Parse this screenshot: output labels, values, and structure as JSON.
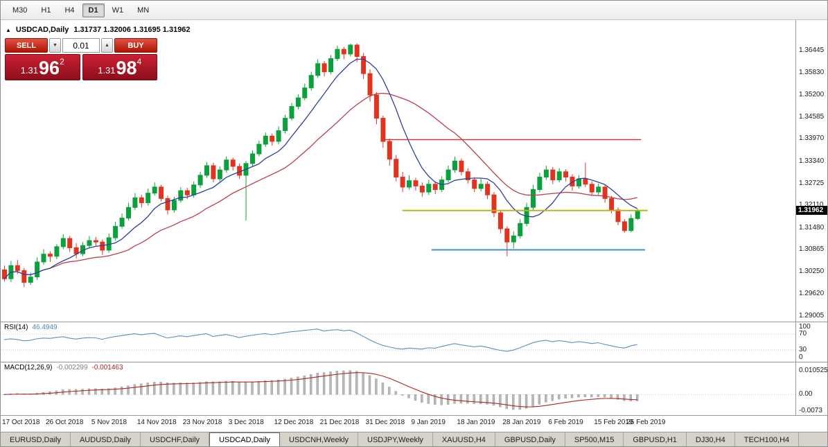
{
  "toolbar": {
    "timeframes": [
      {
        "label": "M30",
        "active": false
      },
      {
        "label": "H1",
        "active": false
      },
      {
        "label": "H4",
        "active": false
      },
      {
        "label": "D1",
        "active": true
      },
      {
        "label": "W1",
        "active": false
      },
      {
        "label": "MN",
        "active": false
      }
    ]
  },
  "icons": {
    "chart_arrow": "▲",
    "spin_up": "▲",
    "spin_down": "▼"
  },
  "chart": {
    "title": "USDCAD,Daily",
    "ohlc": "1.31737 1.32006 1.31695 1.31962"
  },
  "trade_panel": {
    "sell_label": "SELL",
    "buy_label": "BUY",
    "volume": "0.01",
    "sell": {
      "prefix": "1.31",
      "big": "96",
      "sup": "2"
    },
    "buy": {
      "prefix": "1.31",
      "big": "98",
      "sup": "4"
    }
  },
  "price_axis": {
    "labels": [
      "1.36445",
      "1.35830",
      "1.35200",
      "1.34585",
      "1.33970",
      "1.33340",
      "1.32725",
      "1.32110",
      "1.31480",
      "1.30865",
      "1.30250",
      "1.29620",
      "1.29005"
    ],
    "current": "1.31962"
  },
  "rsi": {
    "name": "RSI(14)",
    "value": "46.4949",
    "axis": [
      "100",
      "70",
      "30",
      "0"
    ],
    "line_color": "#5b8fbe"
  },
  "macd": {
    "name": "MACD(12,26,9)",
    "value1": "-0.002299",
    "value2": "-0.001463",
    "axis": [
      "0.010525",
      "0.00",
      "-0.0073"
    ],
    "histogram_color": "#b8b8b8",
    "signal_color": "#b22222"
  },
  "tabs": [
    {
      "label": "EURUSD,Daily",
      "active": false
    },
    {
      "label": "AUDUSD,Daily",
      "active": false
    },
    {
      "label": "USDCHF,Daily",
      "active": false
    },
    {
      "label": "USDCAD,Daily",
      "active": true
    },
    {
      "label": "USDCNH,Weekly",
      "active": false
    },
    {
      "label": "USDJPY,Weekly",
      "active": false
    },
    {
      "label": "XAUUSD,H4",
      "active": false
    },
    {
      "label": "GBPUSD,Daily",
      "active": false
    },
    {
      "label": "SP500,M15",
      "active": false
    },
    {
      "label": "GBPUSD,H1",
      "active": false
    },
    {
      "label": "DJ30,H4",
      "active": false
    },
    {
      "label": "TECH100,H4",
      "active": false
    }
  ],
  "chart_data": {
    "type": "candlestick",
    "symbol": "USDCAD",
    "timeframe": "Daily",
    "current_bar": {
      "open": 1.31737,
      "high": 1.32006,
      "low": 1.31695,
      "close": 1.31962
    },
    "y_range": [
      1.2885,
      1.373
    ],
    "colors": {
      "up": "#0aa13c",
      "down": "#e03420"
    },
    "ma_fast": {
      "period": 8,
      "color": "#2b3f9e"
    },
    "ma_slow": {
      "period": 20,
      "color": "#bf3b4b"
    },
    "hlines": [
      {
        "price": 1.3395,
        "from": 58,
        "to": 97.6,
        "color": "#cc3b33",
        "width": 1.4
      },
      {
        "price": 1.31962,
        "from": 61,
        "to": 98.6,
        "color": "#b8b81e",
        "width": 2
      },
      {
        "price": 1.3086,
        "from": 65.5,
        "to": 98.2,
        "color": "#3f8fd2",
        "width": 2
      }
    ],
    "date_labels": [
      {
        "i": 0,
        "text": "17 Oct 2018"
      },
      {
        "i": 7,
        "text": "26 Oct 2018"
      },
      {
        "i": 14,
        "text": "5 Nov 2018"
      },
      {
        "i": 21,
        "text": "14 Nov 2018"
      },
      {
        "i": 28,
        "text": "23 Nov 2018"
      },
      {
        "i": 35,
        "text": "3 Dec 2018"
      },
      {
        "i": 42,
        "text": "12 Dec 2018"
      },
      {
        "i": 49,
        "text": "21 Dec 2018"
      },
      {
        "i": 56,
        "text": "31 Dec 2018"
      },
      {
        "i": 63,
        "text": "9 Jan 2019"
      },
      {
        "i": 70,
        "text": "18 Jan 2019"
      },
      {
        "i": 77,
        "text": "28 Jan 2019"
      },
      {
        "i": 84,
        "text": "6 Feb 2019"
      },
      {
        "i": 91,
        "text": "15 Feb 2019"
      },
      {
        "i": 96,
        "text": "25 Feb 2019"
      }
    ],
    "candles": [
      [
        1.303,
        1.3042,
        1.2998,
        1.3005
      ],
      [
        1.3005,
        1.3055,
        1.2996,
        1.3042
      ],
      [
        1.3042,
        1.3058,
        1.3018,
        1.3028
      ],
      [
        1.3028,
        1.3035,
        1.2982,
        1.2995
      ],
      [
        1.2995,
        1.3022,
        1.2988,
        1.301
      ],
      [
        1.301,
        1.3065,
        1.3002,
        1.3052
      ],
      [
        1.3052,
        1.3088,
        1.3045,
        1.3074
      ],
      [
        1.3074,
        1.3082,
        1.3052,
        1.3068
      ],
      [
        1.3068,
        1.3102,
        1.306,
        1.3095
      ],
      [
        1.3095,
        1.313,
        1.3088,
        1.3118
      ],
      [
        1.3118,
        1.3125,
        1.308,
        1.3092
      ],
      [
        1.3092,
        1.3105,
        1.3062,
        1.3075
      ],
      [
        1.3075,
        1.3108,
        1.3068,
        1.3098
      ],
      [
        1.3098,
        1.3125,
        1.309,
        1.3112
      ],
      [
        1.3112,
        1.3122,
        1.3095,
        1.3108
      ],
      [
        1.3108,
        1.3115,
        1.3072,
        1.3085
      ],
      [
        1.3085,
        1.3132,
        1.3078,
        1.312
      ],
      [
        1.312,
        1.3165,
        1.3112,
        1.3152
      ],
      [
        1.3152,
        1.3188,
        1.3145,
        1.3175
      ],
      [
        1.3175,
        1.3218,
        1.3168,
        1.3205
      ],
      [
        1.3205,
        1.3245,
        1.3198,
        1.3232
      ],
      [
        1.3232,
        1.324,
        1.3205,
        1.3218
      ],
      [
        1.3218,
        1.3258,
        1.321,
        1.3245
      ],
      [
        1.3245,
        1.3275,
        1.3238,
        1.3262
      ],
      [
        1.3262,
        1.3268,
        1.3222,
        1.323
      ],
      [
        1.323,
        1.3238,
        1.3185,
        1.3198
      ],
      [
        1.3198,
        1.3235,
        1.319,
        1.3225
      ],
      [
        1.3225,
        1.3262,
        1.3218,
        1.3252
      ],
      [
        1.3252,
        1.326,
        1.3228,
        1.324
      ],
      [
        1.324,
        1.3278,
        1.3232,
        1.3268
      ],
      [
        1.3268,
        1.3305,
        1.326,
        1.3295
      ],
      [
        1.3295,
        1.3332,
        1.3288,
        1.3322
      ],
      [
        1.3322,
        1.333,
        1.3275,
        1.3285
      ],
      [
        1.3285,
        1.332,
        1.3278,
        1.331
      ],
      [
        1.331,
        1.3348,
        1.3302,
        1.3338
      ],
      [
        1.3338,
        1.3345,
        1.3308,
        1.332
      ],
      [
        1.332,
        1.3328,
        1.3285,
        1.3295
      ],
      [
        1.3295,
        1.3335,
        1.3168,
        1.3328
      ],
      [
        1.3328,
        1.3365,
        1.332,
        1.3355
      ],
      [
        1.3355,
        1.3392,
        1.3348,
        1.3382
      ],
      [
        1.3382,
        1.3415,
        1.3375,
        1.3405
      ],
      [
        1.3405,
        1.3412,
        1.3378,
        1.339
      ],
      [
        1.339,
        1.3432,
        1.3382,
        1.342
      ],
      [
        1.342,
        1.3465,
        1.3412,
        1.3455
      ],
      [
        1.3455,
        1.3498,
        1.3448,
        1.3488
      ],
      [
        1.3488,
        1.3522,
        1.348,
        1.3512
      ],
      [
        1.3512,
        1.3552,
        1.3505,
        1.354
      ],
      [
        1.354,
        1.3585,
        1.3532,
        1.3575
      ],
      [
        1.3575,
        1.362,
        1.3568,
        1.3608
      ],
      [
        1.3608,
        1.3615,
        1.3572,
        1.3585
      ],
      [
        1.3585,
        1.3632,
        1.3578,
        1.3622
      ],
      [
        1.3622,
        1.3658,
        1.3615,
        1.3648
      ],
      [
        1.3648,
        1.3655,
        1.362,
        1.3635
      ],
      [
        1.3635,
        1.3664,
        1.3628,
        1.366
      ],
      [
        1.366,
        1.3665,
        1.3612,
        1.3628
      ],
      [
        1.3628,
        1.3638,
        1.3565,
        1.358
      ],
      [
        1.358,
        1.3592,
        1.3502,
        1.352
      ],
      [
        1.352,
        1.3528,
        1.3438,
        1.3455
      ],
      [
        1.3455,
        1.3462,
        1.3372,
        1.339
      ],
      [
        1.339,
        1.3398,
        1.3322,
        1.334
      ],
      [
        1.334,
        1.3352,
        1.3278,
        1.329
      ],
      [
        1.329,
        1.3305,
        1.3248,
        1.3262
      ],
      [
        1.3262,
        1.3295,
        1.3255,
        1.328
      ],
      [
        1.328,
        1.3288,
        1.3252,
        1.3265
      ],
      [
        1.3265,
        1.3275,
        1.3235,
        1.3248
      ],
      [
        1.3248,
        1.3282,
        1.324,
        1.327
      ],
      [
        1.327,
        1.3278,
        1.3242,
        1.3255
      ],
      [
        1.3255,
        1.3292,
        1.3248,
        1.3282
      ],
      [
        1.3282,
        1.3322,
        1.3275,
        1.331
      ],
      [
        1.331,
        1.3348,
        1.3302,
        1.3335
      ],
      [
        1.3335,
        1.3342,
        1.3295,
        1.3305
      ],
      [
        1.3305,
        1.3315,
        1.3272,
        1.3282
      ],
      [
        1.3282,
        1.329,
        1.3248,
        1.3258
      ],
      [
        1.3258,
        1.3285,
        1.325,
        1.327
      ],
      [
        1.327,
        1.3278,
        1.3228,
        1.324
      ],
      [
        1.324,
        1.3248,
        1.3178,
        1.319
      ],
      [
        1.319,
        1.3198,
        1.3132,
        1.3145
      ],
      [
        1.3145,
        1.3152,
        1.3068,
        1.3108
      ],
      [
        1.3108,
        1.3138,
        1.309,
        1.3125
      ],
      [
        1.3125,
        1.3172,
        1.3118,
        1.316
      ],
      [
        1.316,
        1.3218,
        1.3152,
        1.3205
      ],
      [
        1.3205,
        1.3268,
        1.3198,
        1.3255
      ],
      [
        1.3255,
        1.3302,
        1.3248,
        1.329
      ],
      [
        1.329,
        1.3322,
        1.3282,
        1.331
      ],
      [
        1.331,
        1.3318,
        1.327,
        1.3282
      ],
      [
        1.3282,
        1.3315,
        1.3275,
        1.3305
      ],
      [
        1.3305,
        1.3312,
        1.3278,
        1.329
      ],
      [
        1.329,
        1.3298,
        1.3252,
        1.3265
      ],
      [
        1.3265,
        1.3295,
        1.3258,
        1.3285
      ],
      [
        1.3285,
        1.333,
        1.3262,
        1.327
      ],
      [
        1.327,
        1.3278,
        1.3238,
        1.3248
      ],
      [
        1.3248,
        1.3272,
        1.324,
        1.3262
      ],
      [
        1.3262,
        1.3268,
        1.3218,
        1.323
      ],
      [
        1.323,
        1.3238,
        1.3188,
        1.3198
      ],
      [
        1.3198,
        1.3205,
        1.3155,
        1.3165
      ],
      [
        1.3165,
        1.3172,
        1.3134,
        1.314
      ],
      [
        1.314,
        1.3185,
        1.3135,
        1.3174
      ],
      [
        1.31737,
        1.32006,
        1.31695,
        1.31962
      ]
    ]
  }
}
